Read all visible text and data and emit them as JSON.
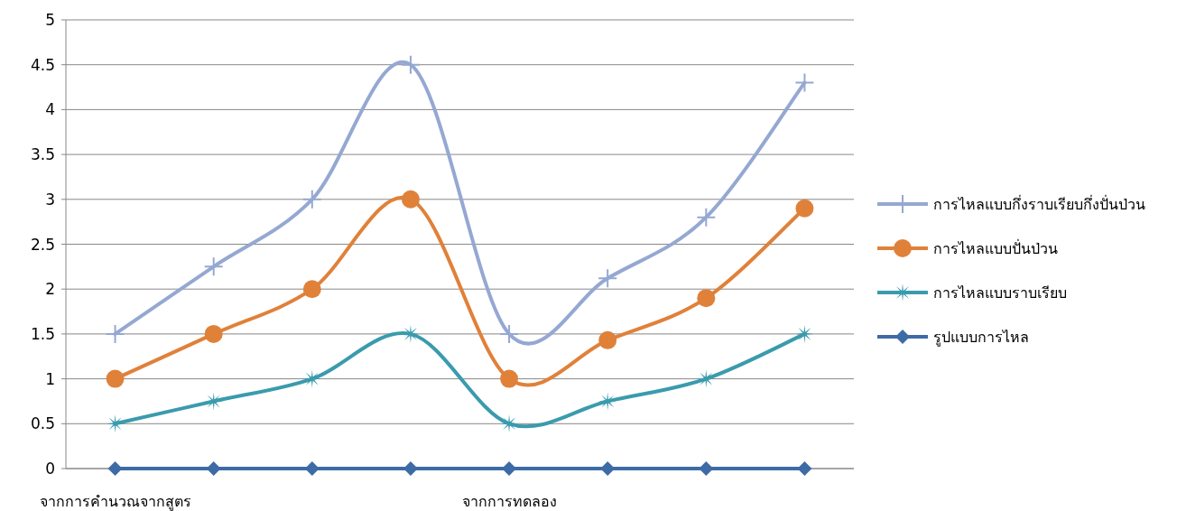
{
  "chart_data": {
    "type": "line",
    "categories": [
      "จากการคำนวณจากสูตร",
      null,
      null,
      null,
      "จากการทดลอง",
      null,
      null,
      null
    ],
    "ylim": [
      0,
      5
    ],
    "yticks": [
      0,
      0.5,
      1,
      1.5,
      2,
      2.5,
      3,
      3.5,
      4,
      4.5,
      5
    ],
    "grid": "y",
    "legend": "right",
    "line_style": "solid",
    "series": [
      {
        "name": "การไหลแบบกึ่งราบเรียบกึ่งปั่นป่วน",
        "color": "#95a8d2",
        "marker": "cross",
        "values": [
          1.5,
          2.25,
          3,
          4.5,
          1.5,
          2.12,
          2.8,
          4.3
        ]
      },
      {
        "name": "การไหลแบบปั่นป่วน",
        "color": "#e0813a",
        "marker": "circle",
        "values": [
          1,
          1.5,
          2,
          3,
          1,
          1.43,
          1.9,
          2.9
        ]
      },
      {
        "name": "การไหลแบบราบเรียบ",
        "color": "#3a9bad",
        "marker": "star",
        "values": [
          0.5,
          0.75,
          1,
          1.5,
          0.5,
          0.75,
          1,
          1.5
        ]
      },
      {
        "name": "รูปแบบการไหล",
        "color": "#3d6ba6",
        "marker": "diamond",
        "values": [
          0,
          0,
          0,
          0,
          0,
          0,
          0,
          0
        ]
      }
    ]
  }
}
